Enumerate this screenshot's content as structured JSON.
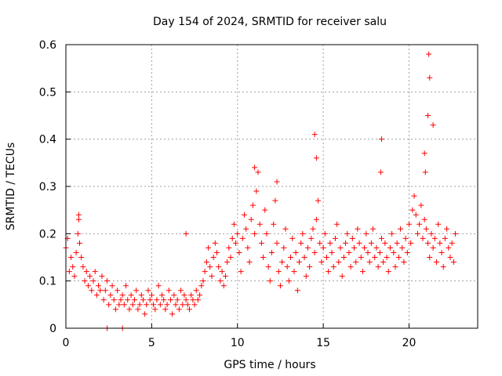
{
  "chart_data": {
    "type": "scatter",
    "title": "Day 154 of 2024, SRMTID for receiver salu",
    "xlabel": "GPS time / hours",
    "ylabel": "SRMTID / TECUs",
    "xlim": [
      0,
      24
    ],
    "ylim": [
      0,
      0.6
    ],
    "x_ticks": [
      0,
      5,
      10,
      15,
      20
    ],
    "y_ticks": [
      0,
      0.1,
      0.2,
      0.3,
      0.4,
      0.5,
      0.6
    ],
    "grid": true,
    "series_color": "#ff0000",
    "series": [
      {
        "name": "SRMTID",
        "marker": "plus",
        "x": [
          0.0,
          0.1,
          0.2,
          0.3,
          0.4,
          0.5,
          0.6,
          0.7,
          0.75,
          0.8,
          0.9,
          1.0,
          1.1,
          1.2,
          1.3,
          1.4,
          1.5,
          1.6,
          1.7,
          1.8,
          1.9,
          2.0,
          2.1,
          2.2,
          2.3,
          2.4,
          2.5,
          2.6,
          2.7,
          2.8,
          2.9,
          3.0,
          3.1,
          3.2,
          3.3,
          3.4,
          3.5,
          3.6,
          3.7,
          3.8,
          3.9,
          4.0,
          4.1,
          4.2,
          4.3,
          4.4,
          4.5,
          4.6,
          4.7,
          4.8,
          4.9,
          5.0,
          5.1,
          5.2,
          5.3,
          5.4,
          5.5,
          5.6,
          5.7,
          5.8,
          5.9,
          6.0,
          6.1,
          6.2,
          6.3,
          6.4,
          6.5,
          6.6,
          6.7,
          6.8,
          6.9,
          7.0,
          7.1,
          7.2,
          7.3,
          7.4,
          7.5,
          7.6,
          7.7,
          7.8,
          7.9,
          8.0,
          8.1,
          8.2,
          8.3,
          8.4,
          8.5,
          8.6,
          8.7,
          8.8,
          8.9,
          9.0,
          9.1,
          9.2,
          9.3,
          9.4,
          9.5,
          9.6,
          9.7,
          9.8,
          9.9,
          10.0,
          10.1,
          10.2,
          10.3,
          10.4,
          10.5,
          10.6,
          10.7,
          10.8,
          10.9,
          11.0,
          11.1,
          11.2,
          11.3,
          11.4,
          11.5,
          11.6,
          11.7,
          11.8,
          11.9,
          12.0,
          12.1,
          12.2,
          12.3,
          12.4,
          12.5,
          12.6,
          12.7,
          12.8,
          12.9,
          13.0,
          13.1,
          13.2,
          13.3,
          13.4,
          13.5,
          13.6,
          13.7,
          13.8,
          13.9,
          14.0,
          14.1,
          14.2,
          14.3,
          14.4,
          14.5,
          14.6,
          14.7,
          14.8,
          14.9,
          15.0,
          15.1,
          15.2,
          15.3,
          15.4,
          15.5,
          15.6,
          15.7,
          15.8,
          15.9,
          16.0,
          16.1,
          16.2,
          16.3,
          16.4,
          16.5,
          16.6,
          16.7,
          16.8,
          16.9,
          17.0,
          17.1,
          17.2,
          17.3,
          17.4,
          17.5,
          17.6,
          17.7,
          17.8,
          17.9,
          18.0,
          18.1,
          18.2,
          18.3,
          18.4,
          18.5,
          18.6,
          18.7,
          18.8,
          18.9,
          19.0,
          19.1,
          19.2,
          19.3,
          19.4,
          19.5,
          19.6,
          19.7,
          19.8,
          19.9,
          20.0,
          20.1,
          20.2,
          20.3,
          20.4,
          20.5,
          20.6,
          20.7,
          20.8,
          20.9,
          21.0,
          21.1,
          21.2,
          21.3,
          21.4,
          21.5,
          21.6,
          21.7,
          21.8,
          21.9,
          22.0,
          22.1,
          22.2,
          22.3,
          22.4,
          22.5,
          22.6,
          22.7,
          14.5,
          14.6,
          21.1,
          21.15,
          21.2,
          20.9,
          20.95,
          21.4,
          18.4,
          18.35,
          11.0,
          12.3,
          0.75,
          7.0,
          2.4,
          3.3
        ],
        "y": [
          0.17,
          0.19,
          0.12,
          0.15,
          0.13,
          0.11,
          0.16,
          0.2,
          0.23,
          0.18,
          0.15,
          0.13,
          0.1,
          0.12,
          0.09,
          0.11,
          0.08,
          0.1,
          0.12,
          0.07,
          0.09,
          0.08,
          0.11,
          0.06,
          0.08,
          0.1,
          0.05,
          0.07,
          0.09,
          0.06,
          0.04,
          0.08,
          0.05,
          0.06,
          0.07,
          0.05,
          0.09,
          0.06,
          0.04,
          0.07,
          0.05,
          0.06,
          0.08,
          0.04,
          0.05,
          0.07,
          0.06,
          0.03,
          0.05,
          0.08,
          0.06,
          0.07,
          0.05,
          0.04,
          0.06,
          0.09,
          0.05,
          0.07,
          0.06,
          0.04,
          0.05,
          0.08,
          0.06,
          0.03,
          0.07,
          0.05,
          0.06,
          0.04,
          0.08,
          0.05,
          0.07,
          0.06,
          0.05,
          0.04,
          0.07,
          0.06,
          0.05,
          0.08,
          0.06,
          0.07,
          0.09,
          0.1,
          0.12,
          0.14,
          0.17,
          0.13,
          0.11,
          0.15,
          0.18,
          0.16,
          0.13,
          0.1,
          0.12,
          0.09,
          0.11,
          0.14,
          0.17,
          0.15,
          0.19,
          0.22,
          0.18,
          0.2,
          0.16,
          0.12,
          0.19,
          0.24,
          0.21,
          0.17,
          0.14,
          0.23,
          0.26,
          0.2,
          0.29,
          0.33,
          0.22,
          0.18,
          0.15,
          0.25,
          0.2,
          0.13,
          0.1,
          0.16,
          0.22,
          0.27,
          0.18,
          0.12,
          0.09,
          0.14,
          0.17,
          0.21,
          0.13,
          0.1,
          0.15,
          0.19,
          0.12,
          0.16,
          0.08,
          0.14,
          0.18,
          0.2,
          0.15,
          0.11,
          0.17,
          0.13,
          0.19,
          0.21,
          0.16,
          0.23,
          0.27,
          0.18,
          0.14,
          0.17,
          0.2,
          0.15,
          0.12,
          0.18,
          0.16,
          0.13,
          0.19,
          0.22,
          0.14,
          0.17,
          0.11,
          0.15,
          0.18,
          0.2,
          0.16,
          0.13,
          0.19,
          0.17,
          0.14,
          0.21,
          0.18,
          0.15,
          0.12,
          0.17,
          0.2,
          0.16,
          0.14,
          0.18,
          0.21,
          0.15,
          0.17,
          0.13,
          0.16,
          0.19,
          0.14,
          0.18,
          0.15,
          0.12,
          0.17,
          0.2,
          0.16,
          0.13,
          0.18,
          0.15,
          0.21,
          0.17,
          0.14,
          0.19,
          0.16,
          0.22,
          0.18,
          0.25,
          0.28,
          0.24,
          0.2,
          0.22,
          0.26,
          0.19,
          0.23,
          0.21,
          0.18,
          0.15,
          0.2,
          0.17,
          0.19,
          0.14,
          0.22,
          0.18,
          0.16,
          0.13,
          0.19,
          0.21,
          0.17,
          0.15,
          0.18,
          0.14,
          0.2,
          0.41,
          0.36,
          0.45,
          0.58,
          0.53,
          0.37,
          0.33,
          0.43,
          0.4,
          0.33,
          0.34,
          0.31,
          0.24,
          0.2,
          0.0,
          0.0
        ]
      }
    ]
  }
}
